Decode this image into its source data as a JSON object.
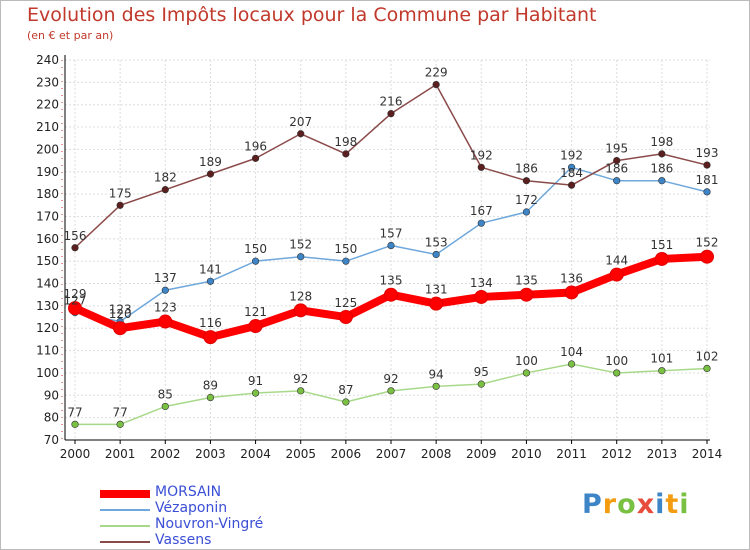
{
  "header": {
    "title": "Evolution des Impôts locaux pour la Commune par Habitant",
    "subtitle": "(en € et par an)"
  },
  "logo": {
    "letters": [
      "P",
      "r",
      "o",
      "x",
      "i",
      "t",
      "i"
    ]
  },
  "colors": {
    "title": "#c0392b",
    "legend_text": "#3b4fd6",
    "grid": "#dddddd",
    "axis": "#000000"
  },
  "chart_data": {
    "type": "line",
    "title": "Evolution des Impôts locaux pour la Commune par Habitant",
    "subtitle": "(en € et par an)",
    "x": [
      "2000",
      "2001",
      "2002",
      "2003",
      "2004",
      "2005",
      "2006",
      "2007",
      "2008",
      "2009",
      "2010",
      "2011",
      "2012",
      "2013",
      "2014"
    ],
    "ylim": [
      70,
      240
    ],
    "yticks": [
      70,
      80,
      90,
      100,
      110,
      120,
      130,
      140,
      150,
      160,
      170,
      180,
      190,
      200,
      210,
      220,
      230,
      240
    ],
    "grid": true,
    "legend_position": "bottom-left",
    "series": [
      {
        "name": "MORSAIN",
        "color": "#ff0000",
        "marker": "#cc0000",
        "thick": true,
        "values": [
          129,
          120,
          123,
          116,
          121,
          128,
          125,
          135,
          131,
          134,
          135,
          136,
          144,
          151,
          152
        ],
        "labels": [
          "129",
          "120",
          "123",
          "116",
          "121",
          "128",
          "125",
          "135",
          "131",
          "134",
          "135",
          "136",
          "144",
          "151",
          "152"
        ]
      },
      {
        "name": "Vézaponin",
        "color": "#6fa8dc",
        "marker": "#3d85c6",
        "thick": false,
        "values": [
          127,
          123,
          137,
          141,
          150,
          152,
          150,
          157,
          153,
          167,
          172,
          192,
          186,
          186,
          181
        ],
        "labels": [
          "127",
          "123",
          "137",
          "141",
          "150",
          "152",
          "150",
          "157",
          "153",
          "167",
          "172",
          "192",
          "186",
          "186",
          "181"
        ]
      },
      {
        "name": "Nouvron-Vingré",
        "color": "#a8d98a",
        "marker": "#7ac143",
        "thick": false,
        "values": [
          77,
          77,
          85,
          89,
          91,
          92,
          87,
          92,
          94,
          95,
          100,
          104,
          100,
          101,
          102
        ],
        "labels": [
          "77",
          "77",
          "85",
          "89",
          "91",
          "92",
          "87",
          "92",
          "94",
          "95",
          "100",
          "104",
          "100",
          "101",
          "102"
        ]
      },
      {
        "name": "Vassens",
        "color": "#8b4a4a",
        "marker": "#5c1f1f",
        "thick": false,
        "values": [
          156,
          175,
          182,
          189,
          196,
          207,
          198,
          216,
          229,
          192,
          186,
          184,
          195,
          198,
          193
        ],
        "labels": [
          "156",
          "175",
          "182",
          "189",
          "196",
          "207",
          "198",
          "216",
          "229",
          "192",
          "186",
          "184",
          "195",
          "198",
          "193"
        ]
      }
    ]
  }
}
